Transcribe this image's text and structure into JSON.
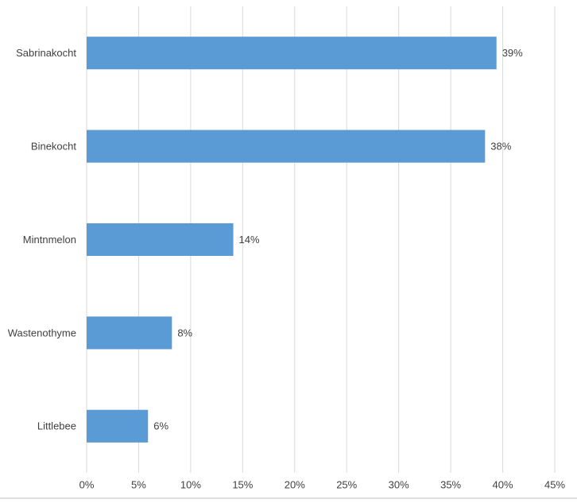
{
  "chart_data": {
    "type": "hbar",
    "categories": [
      "Sabrinakocht",
      "Binekocht",
      "Mintnmelon",
      "Wastenothyme",
      "Littlebee"
    ],
    "values": [
      39.4,
      38.3,
      14.1,
      8.2,
      5.9
    ],
    "value_labels": [
      "39%",
      "38%",
      "14%",
      "8%",
      "6%"
    ],
    "color": "#5b9bd5",
    "xlim": [
      0,
      45
    ],
    "xticks": [
      {
        "value": 0,
        "label": "0%"
      },
      {
        "value": 5,
        "label": "5%"
      },
      {
        "value": 10,
        "label": "10%"
      },
      {
        "value": 15,
        "label": "15%"
      },
      {
        "value": 20,
        "label": "20%"
      },
      {
        "value": 25,
        "label": "25%"
      },
      {
        "value": 30,
        "label": "30%"
      },
      {
        "value": 35,
        "label": "35%"
      },
      {
        "value": 40,
        "label": "40%"
      },
      {
        "value": 45,
        "label": "45%"
      }
    ],
    "grid": true
  }
}
